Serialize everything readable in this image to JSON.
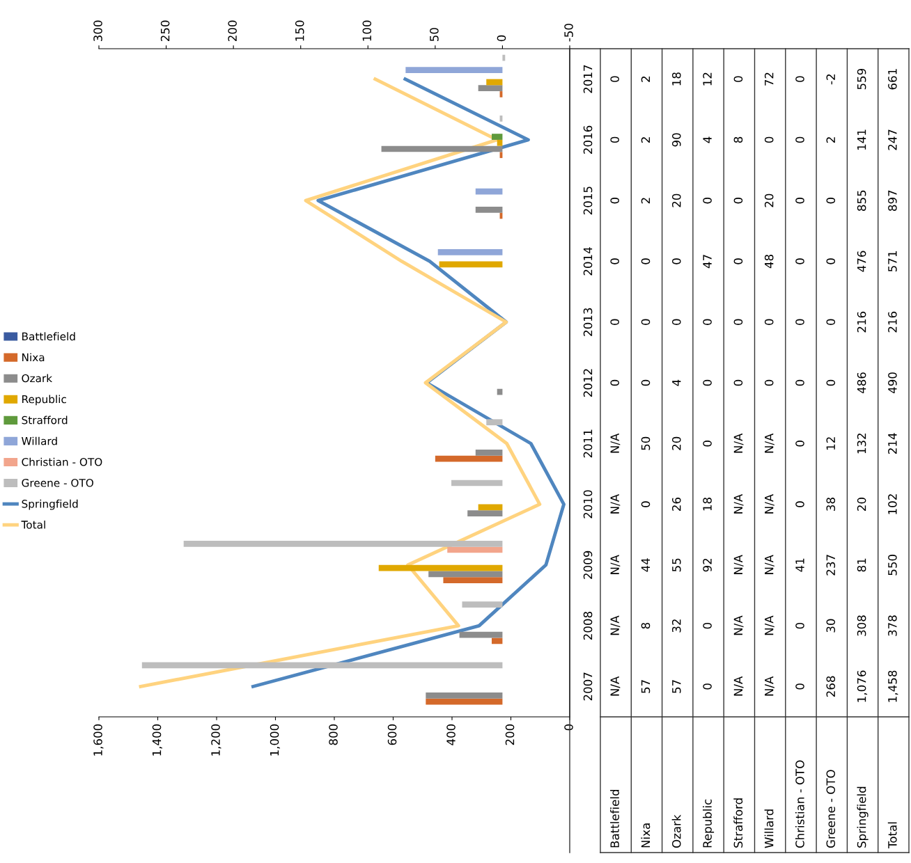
{
  "chart_data": {
    "type": "bar",
    "orientation": "horizontal",
    "legend": "left",
    "grid": false,
    "categories": [
      "2017",
      "2016",
      "2015",
      "2014",
      "2013",
      "2012",
      "2011",
      "2010",
      "2009",
      "2008",
      "2007"
    ],
    "xlim": [
      1600,
      0
    ],
    "xticks": [
      {
        "value": 1600,
        "label": "1,600"
      },
      {
        "value": 1400,
        "label": "1,400"
      },
      {
        "value": 1200,
        "label": "1,200"
      },
      {
        "value": 1000,
        "label": "1,000"
      },
      800,
      600,
      400,
      200,
      0
    ],
    "x2lim": [
      300,
      -50
    ],
    "x2ticks": [
      300,
      250,
      200,
      150,
      100,
      50,
      0,
      -50
    ],
    "series": [
      {
        "name": "Battlefield",
        "color": "#3a5ba0",
        "axis": "x2",
        "values": [
          0,
          0,
          0,
          0,
          0,
          0,
          null,
          null,
          null,
          null,
          null
        ],
        "value_labels": [
          "0",
          "0",
          "0",
          "0",
          "0",
          "0",
          "N/A",
          "N/A",
          "N/A",
          "N/A",
          "N/A"
        ]
      },
      {
        "name": "Nixa",
        "color": "#d4692a",
        "axis": "x2",
        "values": [
          2,
          2,
          2,
          0,
          0,
          0,
          50,
          0,
          44,
          8,
          57
        ],
        "value_labels": [
          "2",
          "2",
          "2",
          "0",
          "0",
          "0",
          "50",
          "0",
          "44",
          "8",
          "57"
        ]
      },
      {
        "name": "Ozark",
        "color": "#8c8c8c",
        "axis": "x2",
        "values": [
          18,
          90,
          20,
          0,
          0,
          4,
          20,
          26,
          55,
          32,
          57
        ],
        "value_labels": [
          "18",
          "90",
          "20",
          "0",
          "0",
          "4",
          "20",
          "26",
          "55",
          "32",
          "57"
        ]
      },
      {
        "name": "Republic",
        "color": "#e0a800",
        "axis": "x2",
        "values": [
          12,
          4,
          0,
          47,
          0,
          0,
          0,
          18,
          92,
          0,
          0
        ],
        "value_labels": [
          "12",
          "4",
          "0",
          "47",
          "0",
          "0",
          "0",
          "18",
          "92",
          "0",
          "0"
        ]
      },
      {
        "name": "Strafford",
        "color": "#5f9a3c",
        "axis": "x2",
        "values": [
          0,
          8,
          0,
          0,
          0,
          0,
          null,
          null,
          null,
          null,
          null
        ],
        "value_labels": [
          "0",
          "8",
          "0",
          "0",
          "0",
          "0",
          "N/A",
          "N/A",
          "N/A",
          "N/A",
          "N/A"
        ]
      },
      {
        "name": "Willard",
        "color": "#8fa6d8",
        "axis": "x2",
        "values": [
          72,
          0,
          20,
          48,
          0,
          0,
          null,
          null,
          null,
          null,
          null
        ],
        "value_labels": [
          "72",
          "0",
          "20",
          "48",
          "0",
          "0",
          "N/A",
          "N/A",
          "N/A",
          "N/A",
          "N/A"
        ]
      },
      {
        "name": "Christian - OTO",
        "color": "#f2a58c",
        "axis": "x2",
        "values": [
          0,
          0,
          0,
          0,
          0,
          0,
          0,
          0,
          41,
          0,
          0
        ],
        "value_labels": [
          "0",
          "0",
          "0",
          "0",
          "0",
          "0",
          "0",
          "0",
          "41",
          "0",
          "0"
        ]
      },
      {
        "name": "Greene - OTO",
        "color": "#bdbdbd",
        "axis": "x2",
        "values": [
          -2,
          2,
          0,
          0,
          0,
          0,
          12,
          38,
          237,
          30,
          268
        ],
        "value_labels": [
          "-2",
          "2",
          "0",
          "0",
          "0",
          "0",
          "12",
          "38",
          "237",
          "30",
          "268"
        ]
      },
      {
        "name": "Springfield",
        "color": "#4f86bf",
        "type": "line",
        "values": [
          559,
          141,
          855,
          476,
          216,
          486,
          132,
          20,
          81,
          308,
          1076
        ],
        "value_labels": [
          "559",
          "141",
          "855",
          "476",
          "216",
          "486",
          "132",
          "20",
          "81",
          "308",
          "1,076"
        ]
      },
      {
        "name": "Total",
        "color": "#ffd37f",
        "type": "line",
        "values": [
          661,
          247,
          897,
          571,
          216,
          490,
          214,
          102,
          550,
          378,
          1458
        ],
        "value_labels": [
          "661",
          "247",
          "897",
          "571",
          "216",
          "490",
          "214",
          "102",
          "550",
          "378",
          "1,458"
        ]
      }
    ]
  }
}
